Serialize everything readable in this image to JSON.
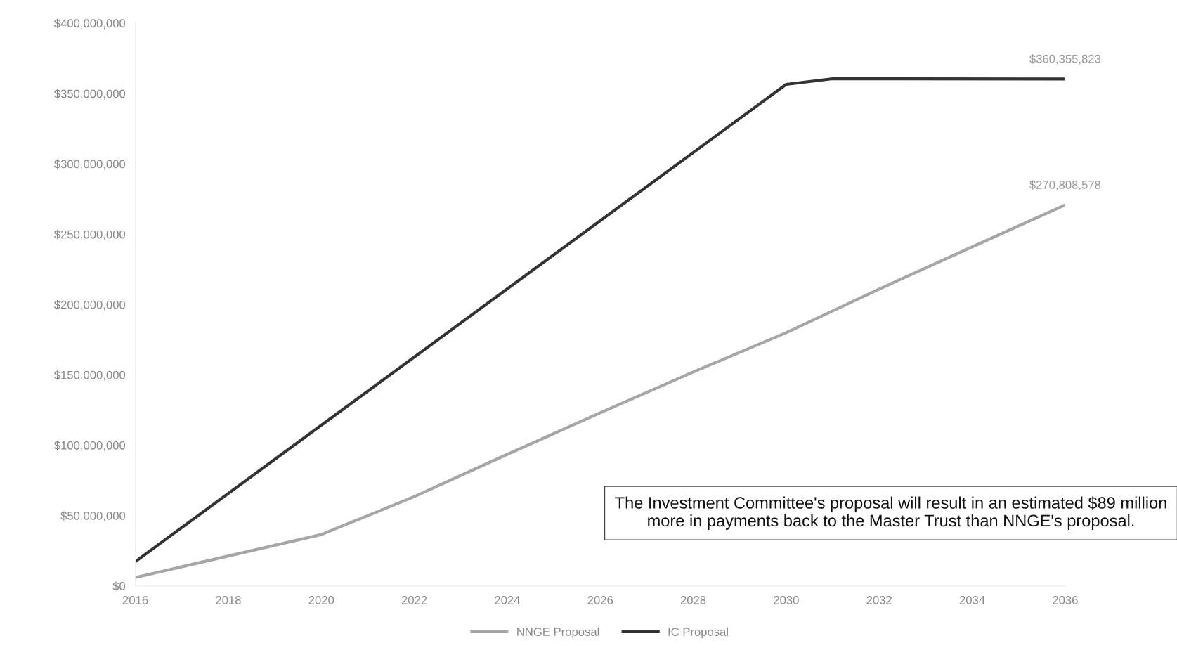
{
  "chart_data": {
    "type": "line",
    "series": [
      {
        "name": "NNGE Proposal",
        "color": "#a6a6a6",
        "x": [
          2016,
          2020,
          2022,
          2024,
          2026,
          2028,
          2030,
          2032,
          2034,
          2036
        ],
        "values": [
          6000000,
          36500000,
          63500000,
          93500000,
          123000000,
          152000000,
          180000000,
          211000000,
          241000000,
          270808578
        ]
      },
      {
        "name": "IC Proposal",
        "color": "#333333",
        "x": [
          2016,
          2030,
          2031,
          2036
        ],
        "values": [
          17300000,
          356500000,
          360500000,
          360355823
        ]
      }
    ],
    "xlim": [
      2016,
      2036
    ],
    "xticks": [
      2016,
      2018,
      2020,
      2022,
      2024,
      2026,
      2028,
      2030,
      2032,
      2034,
      2036
    ],
    "ylim": [
      0,
      400000000
    ],
    "yticks": [
      {
        "value": 0,
        "label": "$0"
      },
      {
        "value": 50000000,
        "label": "$50,000,000"
      },
      {
        "value": 100000000,
        "label": "$100,000,000"
      },
      {
        "value": 150000000,
        "label": "$150,000,000"
      },
      {
        "value": 200000000,
        "label": "$200,000,000"
      },
      {
        "value": 250000000,
        "label": "$250,000,000"
      },
      {
        "value": 300000000,
        "label": "$300,000,000"
      },
      {
        "value": 350000000,
        "label": "$350,000,000"
      },
      {
        "value": 400000000,
        "label": "$400,000,000"
      }
    ],
    "annotations": [
      {
        "text": "$360,355,823",
        "x": 2036,
        "y": 360355823
      },
      {
        "text": "$270,808,578",
        "x": 2036,
        "y": 270808578
      },
      "The Investment Committee's proposal will result in an estimated $89 million more in payments back to the Master Trust than NNGE's proposal."
    ],
    "grid": false,
    "legend": "bottom",
    "marker": "none",
    "line_style": "solid"
  }
}
